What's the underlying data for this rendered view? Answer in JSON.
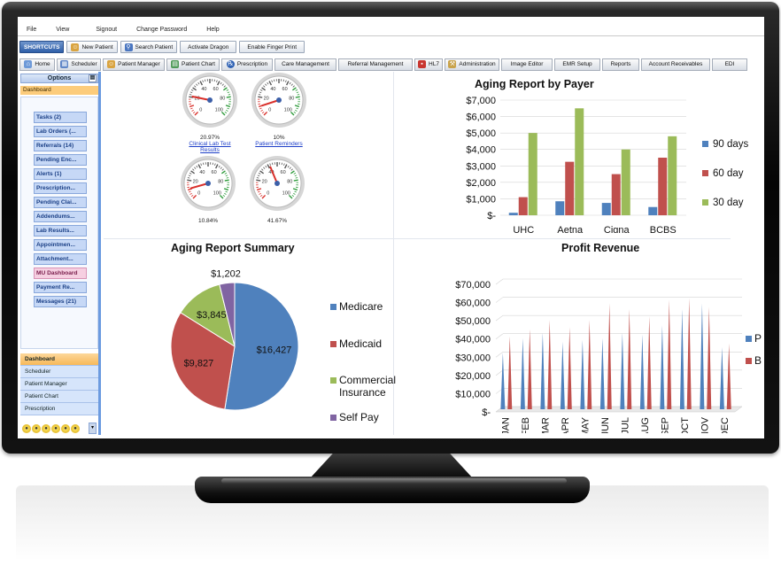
{
  "menu": [
    "File",
    "View",
    "Signout",
    "Change Password",
    "Help"
  ],
  "shortcuts": {
    "label": "SHORTCUTS",
    "buttons": [
      "New Patient",
      "Search Patient",
      "Activate Dragon",
      "Enable Finger Print"
    ]
  },
  "modules": [
    "Home",
    "Scheduler",
    "Patient Manager",
    "Patient Chart",
    "Prescription",
    "Care Management",
    "Referral Management",
    "HL7",
    "Administration",
    "Image Editor",
    "EMR Setup",
    "Reports",
    "Account Receivables",
    "EDI"
  ],
  "sidebar": {
    "title": "Options",
    "pin": "▤",
    "dashboard_label": "Dashboard",
    "items": [
      "Tasks (2)",
      "Lab Orders (...",
      "Referrals (14)",
      "Pending Enc...",
      "Alerts (1)",
      "Prescription...",
      "Pending Clai...",
      "Addendums...",
      "Lab Results...",
      "Appointmen...",
      "Attachment...",
      "MU Dashboard",
      "Payment Re...",
      "Messages (21)"
    ],
    "nav": [
      "Dashboard",
      "Scheduler",
      "Patient Manager",
      "Patient Chart",
      "Prescription"
    ]
  },
  "gauges": [
    {
      "value": "20.97%",
      "link": "Clinical Lab Test Results",
      "pct": 0.2097
    },
    {
      "value": "10%",
      "link": "Patient Reminders",
      "pct": 0.1
    },
    {
      "value": "10.84%",
      "link": "",
      "pct": 0.1084
    },
    {
      "value": "41.67%",
      "link": "",
      "pct": 0.4167
    }
  ],
  "gauge_ticks": [
    "0",
    "20",
    "40",
    "60",
    "80",
    "100"
  ],
  "chart_data": [
    {
      "type": "bar",
      "title": "Aging Report  by Payer",
      "categories": [
        "UHC",
        "Aetna",
        "Cigna",
        "BCBS"
      ],
      "series": [
        {
          "name": "90 days",
          "color": "#4f81bd",
          "values": [
            150,
            850,
            750,
            500
          ]
        },
        {
          "name": "60 day",
          "color": "#c0504d",
          "values": [
            1100,
            3250,
            2500,
            3500
          ]
        },
        {
          "name": "30 day",
          "color": "#9bbb59",
          "values": [
            5000,
            6500,
            4000,
            4800
          ]
        }
      ],
      "ylim": [
        0,
        7000
      ],
      "yticks": [
        "$7,000",
        "$6,000",
        "$5,000",
        "$4,000",
        "$3,000",
        "$2,000",
        "$1,000",
        "$-"
      ],
      "legend": "right"
    },
    {
      "type": "pie",
      "title": "Aging Report  Summary",
      "slices": [
        {
          "name": "Medicare",
          "value": 16427,
          "label": "$16,427",
          "color": "#4f81bd"
        },
        {
          "name": "Medicaid",
          "value": 9827,
          "label": "$9,827",
          "color": "#c0504d"
        },
        {
          "name": "Commercial Insurance",
          "value": 3845,
          "label": "$3,845",
          "color": "#9bbb59"
        },
        {
          "name": "Self Pay",
          "value": 1202,
          "label": "$1,202",
          "color": "#8064a2"
        }
      ],
      "legend_lines": [
        [
          "Medicare"
        ],
        [
          "Medicaid"
        ],
        [
          "Commercial",
          "Insurance"
        ],
        [
          "Self Pay"
        ]
      ],
      "legend": "right"
    },
    {
      "type": "bar",
      "title": "Profit Revenue",
      "categories": [
        "JAN",
        "FEB",
        "MAR",
        "APR",
        "MAY",
        "JUN",
        "JUL",
        "AUG",
        "SEP",
        "OCT",
        "NOV",
        "DEC"
      ],
      "series": [
        {
          "name": "Profit",
          "color": "#4f81bd",
          "values": [
            31000,
            39000,
            42000,
            37000,
            38000,
            39000,
            42000,
            41000,
            46000,
            55000,
            58000,
            34000
          ]
        },
        {
          "name": "Billed",
          "color": "#c0504d",
          "values": [
            40000,
            44000,
            49000,
            45000,
            49000,
            58000,
            55000,
            51000,
            60000,
            61000,
            56000,
            36000
          ]
        }
      ],
      "ylim": [
        0,
        70000
      ],
      "yticks": [
        "$70,000",
        "$60,000",
        "$50,000",
        "$40,000",
        "$30,000",
        "$20,000",
        "$10,000",
        "$-"
      ],
      "legend": "right"
    }
  ]
}
